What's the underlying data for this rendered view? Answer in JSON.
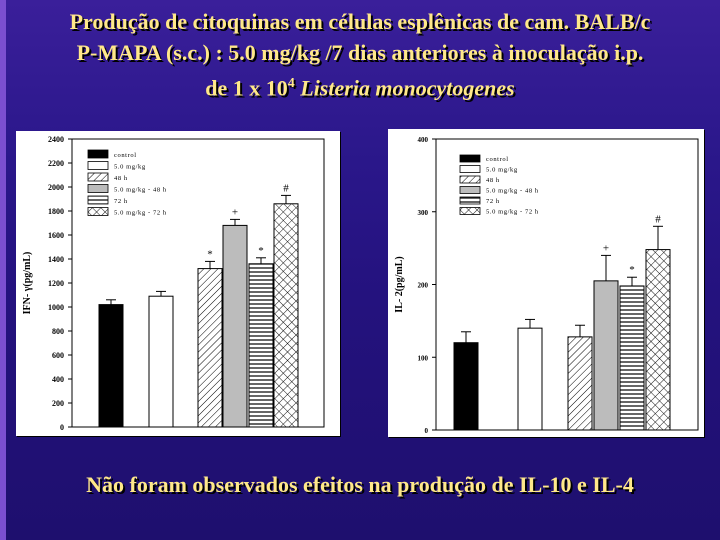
{
  "title": {
    "line1": "Produção de citoquinas em células esplênicas de cam. BALB/c",
    "line2": "P-MAPA (s.c.) : 5.0 mg/kg /7 dias anteriores à inoculação i.p.",
    "line3_prefix": "de 1 x 10",
    "line3_sup": "4",
    "line3_species": "Listeria monocytogenes"
  },
  "footer": "Não foram observados efeitos na produção de IL-10  e IL-4",
  "chart_data": [
    {
      "type": "bar",
      "ylabel": "IFN- γ(pg/mL)",
      "ylim": [
        0,
        2400
      ],
      "yticks": [
        0,
        200,
        400,
        600,
        800,
        1000,
        1200,
        1400,
        1600,
        1800,
        2000,
        2200,
        2400
      ],
      "legend": [
        "control",
        "5.0 mg/kg",
        "48 h",
        "5.0 mg/kg - 48 h",
        "72 h",
        "5.0 mg/kg - 72 h"
      ],
      "legend_placement": "top-left",
      "grid": false,
      "bars": [
        {
          "series": "control",
          "value": 1020,
          "error": 40,
          "mark": ""
        },
        {
          "series": "5.0 mg/kg",
          "value": 1090,
          "error": 40,
          "mark": ""
        },
        {
          "series": "48 h",
          "value": 1320,
          "error": 60,
          "mark": "*"
        },
        {
          "series": "5.0 mg/kg - 48 h",
          "value": 1680,
          "error": 50,
          "mark": "+"
        },
        {
          "series": "72 h",
          "value": 1360,
          "error": 50,
          "mark": "*"
        },
        {
          "series": "5.0 mg/kg - 72 h",
          "value": 1860,
          "error": 70,
          "mark": "#"
        }
      ]
    },
    {
      "type": "bar",
      "ylabel": "IL- 2(pg/mL)",
      "ylim": [
        0,
        400
      ],
      "yticks": [
        0,
        100,
        200,
        300,
        400
      ],
      "legend": [
        "control",
        "5.0 mg/kg",
        "48 h",
        "5.0 mg/kg - 48 h",
        "72 h",
        "5.0 mg/kg - 72 h"
      ],
      "legend_placement": "top-left",
      "grid": false,
      "bars": [
        {
          "series": "control",
          "value": 120,
          "error": 15,
          "mark": ""
        },
        {
          "series": "5.0 mg/kg",
          "value": 140,
          "error": 12,
          "mark": ""
        },
        {
          "series": "48 h",
          "value": 128,
          "error": 16,
          "mark": ""
        },
        {
          "series": "5.0 mg/kg - 48 h",
          "value": 205,
          "error": 35,
          "mark": "+"
        },
        {
          "series": "72 h",
          "value": 198,
          "error": 12,
          "mark": "*"
        },
        {
          "series": "5.0 mg/kg - 72 h",
          "value": 248,
          "error": 32,
          "mark": "#"
        }
      ]
    }
  ]
}
